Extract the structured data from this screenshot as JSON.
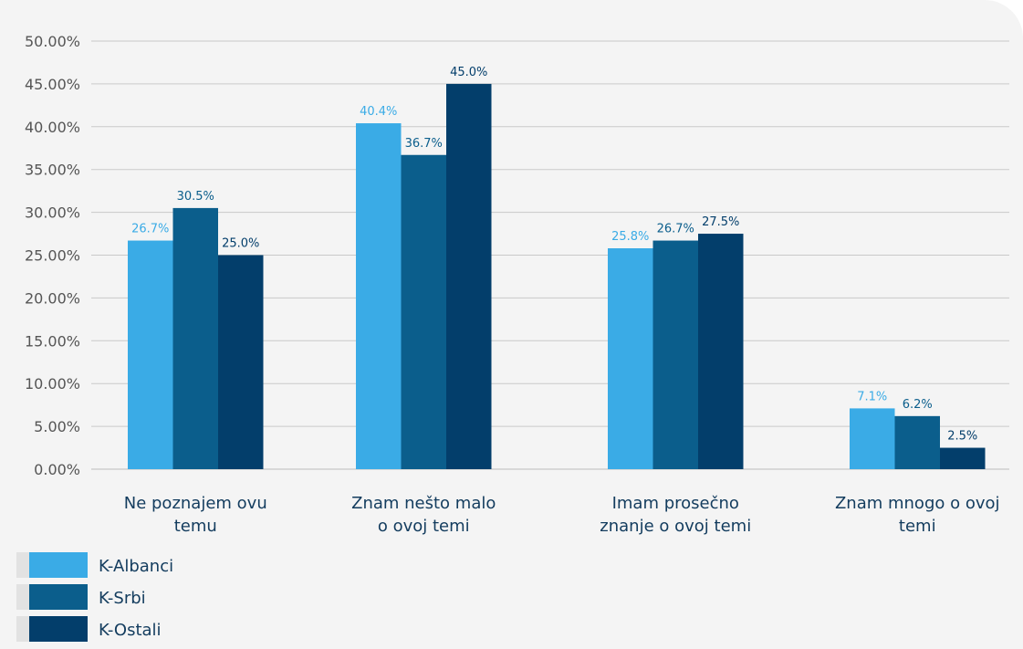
{
  "chart_data": {
    "type": "bar",
    "categories": [
      [
        "Ne poznajem ovu",
        "temu"
      ],
      [
        "Znam nešto malo",
        "o ovoj temi"
      ],
      [
        "Imam prosečno",
        "znanje o ovoj temi"
      ],
      [
        "Znam mnogo o ovoj",
        "temi"
      ]
    ],
    "series": [
      {
        "name": "K-Albanci",
        "color": "#3aabe6",
        "label_color": "#3aabe6",
        "values": [
          26.7,
          40.4,
          25.8,
          7.1
        ],
        "data_labels": [
          "26.7%",
          "40.4%",
          "25.8%",
          "7.1%"
        ]
      },
      {
        "name": "K-Srbi",
        "color": "#0b5e8c",
        "label_color": "#0b5e8c",
        "values": [
          30.5,
          36.7,
          26.7,
          6.2
        ],
        "data_labels": [
          "30.5%",
          "36.7%",
          "26.7%",
          "6.2%"
        ]
      },
      {
        "name": "K-Ostali",
        "color": "#033e6b",
        "label_color": "#033e6b",
        "values": [
          25.0,
          45.0,
          27.5,
          2.5
        ],
        "data_labels": [
          "25.0%",
          "45.0%",
          "27.5%",
          "2.5%"
        ]
      }
    ],
    "yticks": [
      "0.00%",
      "5.00%",
      "10.00%",
      "15.00%",
      "20.00%",
      "25.00%",
      "30.00%",
      "35.00%",
      "40.00%",
      "45.00%",
      "50.00%"
    ],
    "ylim": [
      0,
      50
    ],
    "grid": true,
    "legend_position": "bottom-left"
  }
}
